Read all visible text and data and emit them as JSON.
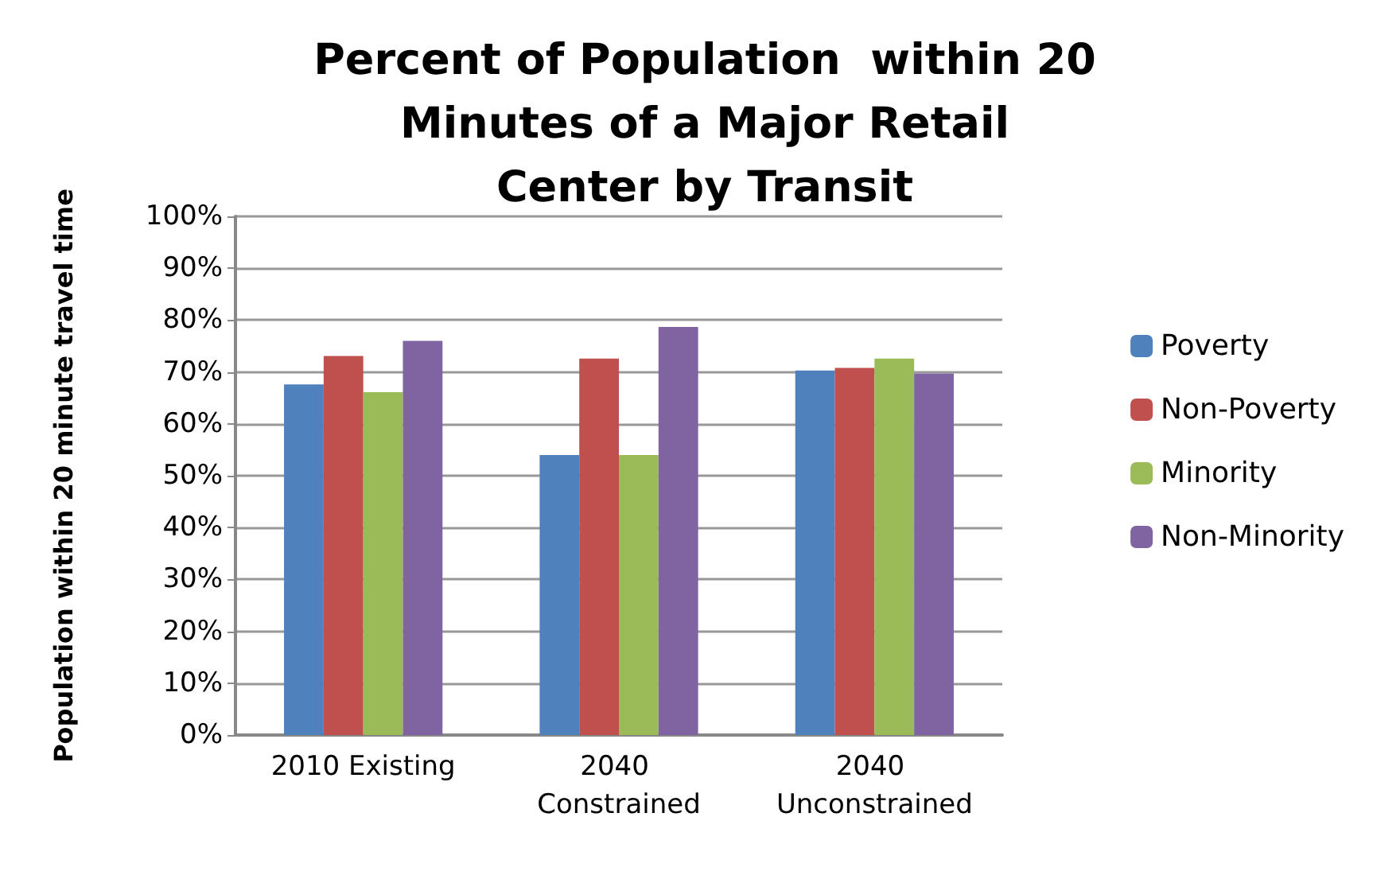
{
  "chart_data": {
    "type": "bar",
    "title": "Percent of Population  within 20 Minutes of a Major Retail Center by Transit",
    "ylabel": "Population within 20 minute travel time",
    "categories": [
      "2010 Existing",
      "2040 Constrained",
      "2040 Unconstrained"
    ],
    "series": [
      {
        "name": "Poverty",
        "color": "#4f81bd",
        "values": [
          67.6,
          54.0,
          70.3
        ]
      },
      {
        "name": "Non-Poverty",
        "color": "#c0504d",
        "values": [
          73.1,
          72.6,
          70.8
        ]
      },
      {
        "name": "Minority",
        "color": "#9bbb59",
        "values": [
          66.1,
          54.0,
          72.6
        ]
      },
      {
        "name": "Non-Minority",
        "color": "#8064a2",
        "values": [
          76.0,
          78.7,
          69.7
        ]
      }
    ],
    "ylim": [
      0,
      100
    ],
    "yticks": [
      {
        "value": 0,
        "label": "0%"
      },
      {
        "value": 10,
        "label": "10%"
      },
      {
        "value": 20,
        "label": "20%"
      },
      {
        "value": 30,
        "label": "30%"
      },
      {
        "value": 40,
        "label": "40%"
      },
      {
        "value": 50,
        "label": "50%"
      },
      {
        "value": 60,
        "label": "60%"
      },
      {
        "value": 70,
        "label": "70%"
      },
      {
        "value": 80,
        "label": "80%"
      },
      {
        "value": 90,
        "label": "90%"
      },
      {
        "value": 100,
        "label": "100%"
      }
    ],
    "grid": "y",
    "legend": "right"
  }
}
